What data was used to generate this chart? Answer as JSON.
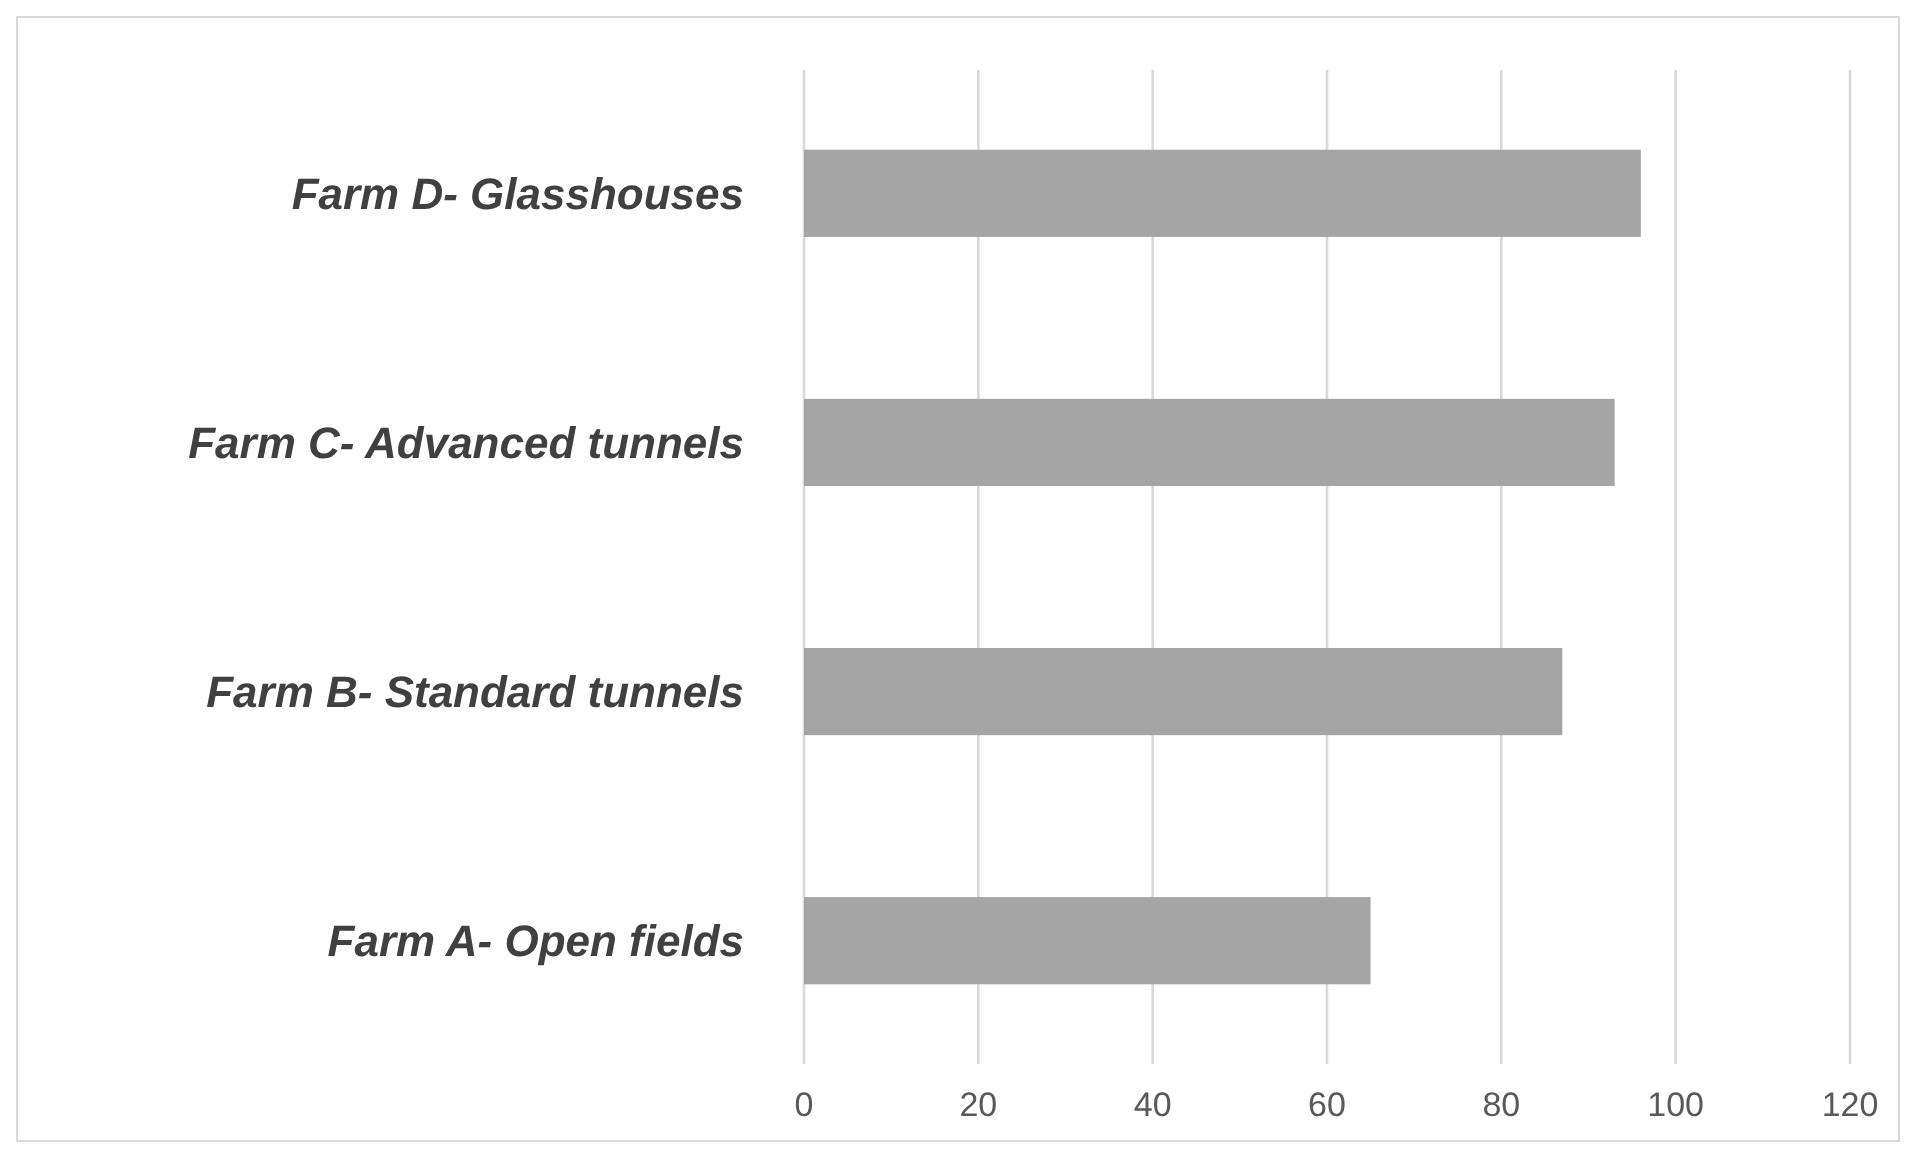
{
  "chart_data": {
    "type": "bar",
    "orientation": "horizontal",
    "categories": [
      "Farm D- Glasshouses",
      "Farm C- Advanced tunnels",
      "Farm B- Standard tunnels",
      "Farm A- Open fields"
    ],
    "values": [
      96,
      93,
      87,
      65
    ],
    "color": "#a5a5a5",
    "xlim": [
      0,
      120
    ],
    "xticks": [
      0,
      20,
      40,
      60,
      80,
      100,
      120
    ],
    "grid": "x"
  }
}
